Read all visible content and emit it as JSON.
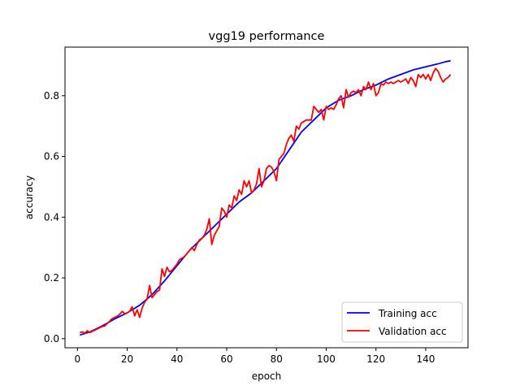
{
  "chart_data": {
    "type": "line",
    "title": "vgg19 performance",
    "xlabel": "epoch",
    "ylabel": "accuracy",
    "xlim": [
      -5,
      157
    ],
    "ylim": [
      -0.03,
      0.96
    ],
    "xticks": [
      0,
      20,
      40,
      60,
      80,
      100,
      120,
      140
    ],
    "yticks": [
      0.0,
      0.2,
      0.4,
      0.6,
      0.8
    ],
    "ytick_labels": [
      "0.0",
      "0.2",
      "0.4",
      "0.6",
      "0.8"
    ],
    "grid": false,
    "legend": {
      "placement": "lower-right"
    },
    "series": [
      {
        "name": "Training acc",
        "color": "#0000ff",
        "x": [
          1,
          5,
          10,
          15,
          20,
          25,
          30,
          35,
          40,
          45,
          50,
          55,
          60,
          65,
          70,
          75,
          80,
          85,
          90,
          95,
          100,
          105,
          110,
          115,
          120,
          125,
          130,
          135,
          140,
          145,
          148,
          150
        ],
        "y": [
          0.012,
          0.022,
          0.042,
          0.065,
          0.085,
          0.11,
          0.145,
          0.19,
          0.24,
          0.29,
          0.33,
          0.37,
          0.41,
          0.45,
          0.48,
          0.52,
          0.56,
          0.62,
          0.68,
          0.72,
          0.76,
          0.785,
          0.8,
          0.82,
          0.835,
          0.855,
          0.87,
          0.885,
          0.895,
          0.905,
          0.912,
          0.915
        ]
      },
      {
        "name": "Validation acc",
        "color": "#ff0000",
        "x": [
          1,
          2,
          3,
          4,
          5,
          6,
          7,
          8,
          9,
          10,
          11,
          12,
          13,
          14,
          15,
          16,
          17,
          18,
          19,
          20,
          21,
          22,
          23,
          24,
          25,
          26,
          27,
          28,
          29,
          30,
          31,
          32,
          33,
          34,
          35,
          36,
          37,
          38,
          39,
          40,
          41,
          42,
          43,
          44,
          45,
          46,
          47,
          48,
          49,
          50,
          51,
          52,
          53,
          54,
          55,
          56,
          57,
          58,
          59,
          60,
          61,
          62,
          63,
          64,
          65,
          66,
          67,
          68,
          69,
          70,
          71,
          72,
          73,
          74,
          75,
          76,
          77,
          78,
          79,
          80,
          81,
          82,
          83,
          84,
          85,
          86,
          87,
          88,
          89,
          90,
          91,
          92,
          93,
          94,
          95,
          96,
          97,
          98,
          99,
          100,
          101,
          102,
          103,
          104,
          105,
          106,
          107,
          108,
          109,
          110,
          111,
          112,
          113,
          114,
          115,
          116,
          117,
          118,
          119,
          120,
          121,
          122,
          123,
          124,
          125,
          126,
          127,
          128,
          129,
          130,
          131,
          132,
          133,
          134,
          135,
          136,
          137,
          138,
          139,
          140,
          141,
          142,
          143,
          144,
          145,
          146,
          147,
          148,
          149,
          150
        ],
        "y": [
          0.02,
          0.022,
          0.018,
          0.026,
          0.02,
          0.024,
          0.028,
          0.032,
          0.036,
          0.04,
          0.042,
          0.05,
          0.058,
          0.066,
          0.07,
          0.074,
          0.08,
          0.09,
          0.082,
          0.085,
          0.09,
          0.105,
          0.075,
          0.095,
          0.07,
          0.1,
          0.12,
          0.13,
          0.175,
          0.135,
          0.145,
          0.155,
          0.16,
          0.23,
          0.205,
          0.235,
          0.22,
          0.225,
          0.235,
          0.245,
          0.26,
          0.265,
          0.27,
          0.28,
          0.29,
          0.3,
          0.29,
          0.31,
          0.325,
          0.33,
          0.34,
          0.36,
          0.395,
          0.31,
          0.34,
          0.355,
          0.37,
          0.43,
          0.42,
          0.4,
          0.44,
          0.43,
          0.47,
          0.455,
          0.49,
          0.475,
          0.52,
          0.5,
          0.52,
          0.48,
          0.49,
          0.51,
          0.56,
          0.5,
          0.52,
          0.56,
          0.57,
          0.565,
          0.55,
          0.52,
          0.59,
          0.6,
          0.61,
          0.64,
          0.66,
          0.67,
          0.65,
          0.7,
          0.69,
          0.71,
          0.715,
          0.72,
          0.72,
          0.72,
          0.765,
          0.755,
          0.745,
          0.755,
          0.72,
          0.765,
          0.755,
          0.76,
          0.755,
          0.77,
          0.79,
          0.8,
          0.76,
          0.82,
          0.795,
          0.81,
          0.815,
          0.81,
          0.82,
          0.8,
          0.83,
          0.82,
          0.845,
          0.82,
          0.84,
          0.8,
          0.81,
          0.84,
          0.835,
          0.845,
          0.84,
          0.845,
          0.84,
          0.845,
          0.85,
          0.845,
          0.85,
          0.855,
          0.84,
          0.86,
          0.85,
          0.83,
          0.87,
          0.86,
          0.87,
          0.855,
          0.87,
          0.85,
          0.875,
          0.89,
          0.88,
          0.86,
          0.845,
          0.855,
          0.86,
          0.87
        ]
      }
    ]
  }
}
